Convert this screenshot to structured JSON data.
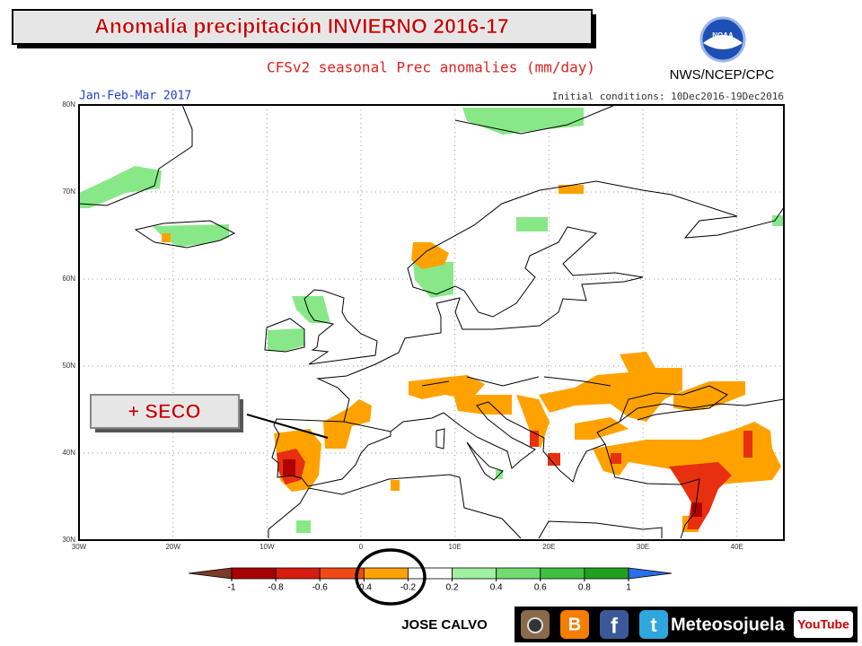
{
  "header": {
    "title": "Anomalía precipitación INVIERNO 2016-17",
    "logo_badge": "NOAA",
    "logo_text": "NWS/NCEP/CPC"
  },
  "map": {
    "subtitle": "CFSv2 seasonal Prec anomalies (mm/day)",
    "period": "Jan-Feb-Mar 2017",
    "initial_conditions": "Initial conditions: 10Dec2016-19Dec2016",
    "lat_labels": [
      "80N",
      "70N",
      "60N",
      "50N",
      "40N",
      "30N"
    ],
    "lon_labels": [
      "30W",
      "20W",
      "10W",
      "0",
      "10E",
      "20E",
      "30E",
      "40E"
    ],
    "callout": "+ SECO"
  },
  "colorbar": {
    "ticks": [
      -1,
      -0.8,
      -0.6,
      -0.4,
      -0.2,
      0.2,
      0.4,
      0.6,
      0.8,
      1
    ],
    "colors": [
      "#7a3b28",
      "#a80000",
      "#d81c10",
      "#f04a14",
      "#ffa200",
      "#ffffff",
      "#a0f0a0",
      "#70dc70",
      "#40c040",
      "#20a020",
      "#2a6ee8"
    ]
  },
  "footer": {
    "author": "JOSE CALVO",
    "icon_letters": [
      "B",
      "f",
      "t"
    ],
    "brand": "Meteosojuela",
    "youtube": "YouTube"
  }
}
